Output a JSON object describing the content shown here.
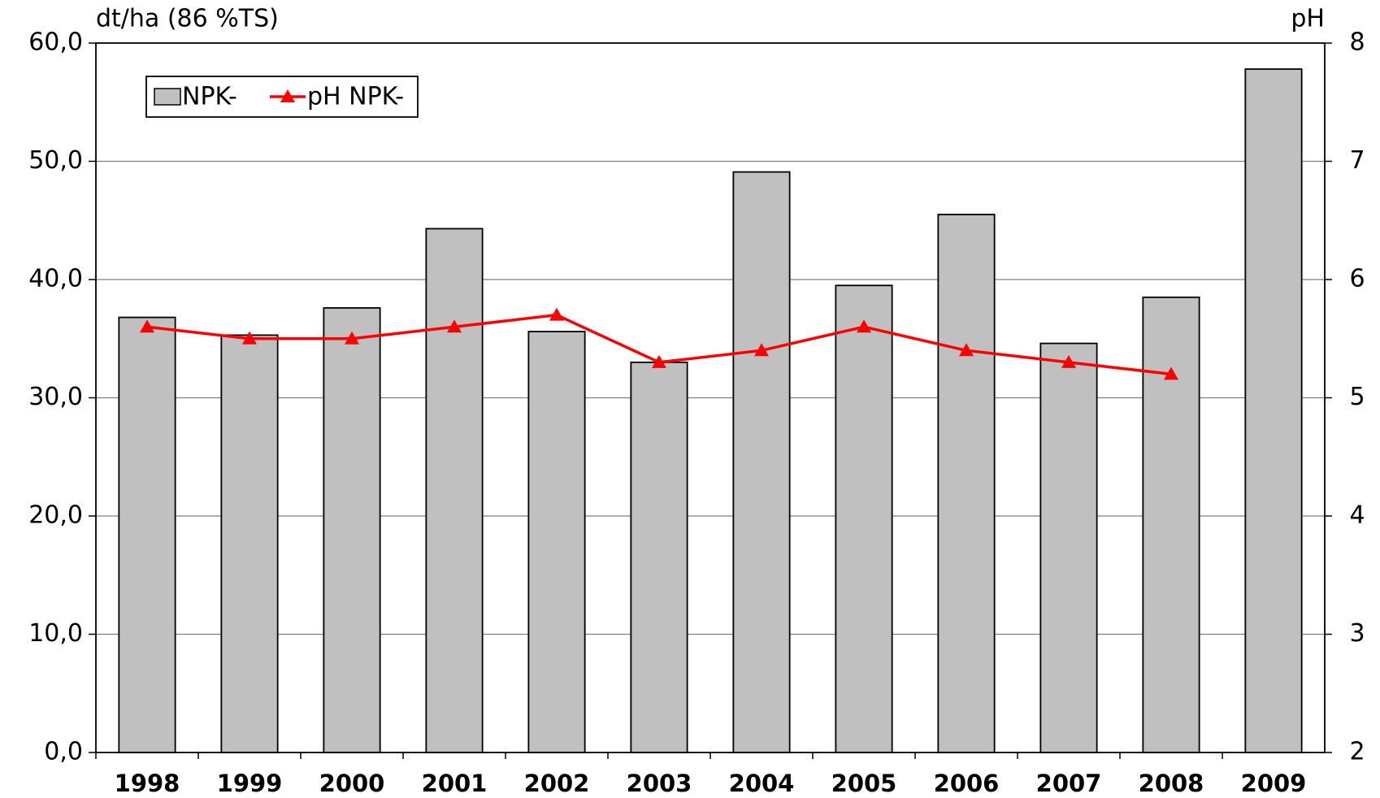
{
  "chart_data": {
    "type": "bar",
    "y_label": "dt/ha (86 %TS)",
    "y2_label": "pH",
    "categories": [
      "1998",
      "1999",
      "2000",
      "2001",
      "2002",
      "2003",
      "2004",
      "2005",
      "2006",
      "2007",
      "2008",
      "2009"
    ],
    "series": [
      {
        "name": "NPK-",
        "color": "#c0c0c0",
        "values": [
          36.8,
          35.3,
          37.6,
          44.3,
          35.6,
          33.0,
          49.1,
          39.5,
          45.5,
          34.6,
          38.5,
          57.8
        ]
      },
      {
        "name": "pH NPK-",
        "color": "#ff0000",
        "type": "line",
        "axis": "y2",
        "values": [
          5.6,
          5.5,
          5.5,
          5.6,
          5.7,
          5.3,
          5.4,
          5.6,
          5.4,
          5.3,
          5.2,
          null
        ]
      }
    ],
    "ylim": [
      0,
      60
    ],
    "yticks": [
      {
        "value": 0,
        "label": "0,0"
      },
      {
        "value": 10,
        "label": "10,0"
      },
      {
        "value": 20,
        "label": "20,0"
      },
      {
        "value": 30,
        "label": "30,0"
      },
      {
        "value": 40,
        "label": "40,0"
      },
      {
        "value": 50,
        "label": "50,0"
      },
      {
        "value": 60,
        "label": "60,0"
      }
    ],
    "y2lim": [
      2,
      8
    ],
    "y2ticks": [
      2,
      3,
      4,
      5,
      6,
      7,
      8
    ],
    "grid": true,
    "legend": "top-left"
  }
}
